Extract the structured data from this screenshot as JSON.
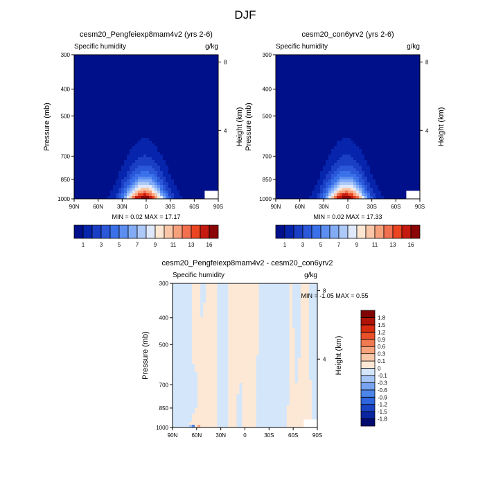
{
  "figure": {
    "title": "DJF"
  },
  "chart_data": [
    {
      "type": "heatmap",
      "id": "panel_a",
      "title": "cesm20_Pengfeiexp8mam4v2 (yrs 2-6)",
      "variable": "Specific humidity",
      "units": "g/kg",
      "ylabel": "Pressure (mb)",
      "ylabel_right": "Height (km)",
      "x_ticks": [
        "90N",
        "60N",
        "30N",
        "0",
        "30S",
        "60S",
        "90S"
      ],
      "x_range": [
        90,
        -90
      ],
      "y_ticks": [
        300,
        400,
        500,
        700,
        850,
        1000
      ],
      "y_range": [
        1000,
        300
      ],
      "height_ticks": [
        8,
        4
      ],
      "min_label": "MIN =",
      "min": "0.02",
      "max_label": "MAX =",
      "max": "17.17",
      "colorbar": {
        "levels": [
          1,
          2,
          3,
          4,
          5,
          6,
          7,
          8,
          9,
          10,
          11,
          12,
          13,
          14,
          16
        ],
        "tick_labels": [
          "1",
          "3",
          "5",
          "7",
          "9",
          "11",
          "13",
          "16"
        ],
        "colors": [
          "#00108a",
          "#0624ac",
          "#1a3fc4",
          "#2a58d8",
          "#3a70e8",
          "#5b8ef0",
          "#82acf5",
          "#adc9f8",
          "#dfe9fb",
          "#fde6d2",
          "#f9c6a8",
          "#f7a07c",
          "#f27050",
          "#ea4420",
          "#c41a10",
          "#8b0606"
        ]
      },
      "surface_missing_lat": -72
    },
    {
      "type": "heatmap",
      "id": "panel_b",
      "title": "cesm20_con6yrv2 (yrs 2-6)",
      "variable": "Specific humidity",
      "units": "g/kg",
      "ylabel": "Pressure (mb)",
      "ylabel_right": "Height (km)",
      "x_ticks": [
        "90N",
        "60N",
        "30N",
        "0",
        "30S",
        "60S",
        "90S"
      ],
      "x_range": [
        90,
        -90
      ],
      "y_ticks": [
        300,
        400,
        500,
        700,
        850,
        1000
      ],
      "y_range": [
        1000,
        300
      ],
      "height_ticks": [
        8,
        4
      ],
      "min_label": "MIN =",
      "min": "0.02",
      "max_label": "MAX =",
      "max": "17.33",
      "colorbar": {
        "levels": [
          1,
          2,
          3,
          4,
          5,
          6,
          7,
          8,
          9,
          10,
          11,
          12,
          13,
          14,
          16
        ],
        "tick_labels": [
          "1",
          "3",
          "5",
          "7",
          "9",
          "11",
          "13",
          "16"
        ],
        "colors": [
          "#00108a",
          "#0624ac",
          "#1a3fc4",
          "#2a58d8",
          "#3a70e8",
          "#5b8ef0",
          "#82acf5",
          "#adc9f8",
          "#dfe9fb",
          "#fde6d2",
          "#f9c6a8",
          "#f7a07c",
          "#f27050",
          "#ea4420",
          "#c41a10",
          "#8b0606"
        ]
      },
      "surface_missing_lat": -72
    },
    {
      "type": "heatmap",
      "id": "panel_diff",
      "title": "cesm20_Pengfeiexp8mam4v2 - cesm20_con6yrv2",
      "variable": "Specific humidity",
      "units": "g/kg",
      "ylabel": "Pressure (mb)",
      "ylabel_right": "Height (km)",
      "x_ticks": [
        "90N",
        "60N",
        "30N",
        "0",
        "30S",
        "60S",
        "90S"
      ],
      "x_range": [
        90,
        -90
      ],
      "y_ticks": [
        300,
        400,
        500,
        700,
        850,
        1000
      ],
      "y_range": [
        1000,
        300
      ],
      "height_ticks": [
        8,
        4
      ],
      "min_label": "MIN =",
      "min": "-1.05",
      "max_label": "MAX =",
      "max": "0.55",
      "colorbar": {
        "levels": [
          -1.8,
          -1.5,
          -1.2,
          -0.9,
          -0.6,
          -0.3,
          -0.1,
          0,
          0.1,
          0.3,
          0.6,
          0.9,
          1.2,
          1.5,
          1.8
        ],
        "tick_labels": [
          "-1.8",
          "-1.5",
          "-1.2",
          "-0.9",
          "-0.6",
          "-0.3",
          "-0.1",
          "0",
          "0.1",
          "0.3",
          "0.6",
          "0.9",
          "1.2",
          "1.5",
          "1.8"
        ],
        "colors": [
          "#020b6e",
          "#0a25a0",
          "#1a43c4",
          "#2e64dd",
          "#4c85ea",
          "#77a3f0",
          "#a7c5f6",
          "#d4e6fa",
          "#fde8d6",
          "#f9c8a9",
          "#f6a47d",
          "#f17a52",
          "#e9502a",
          "#d82c10",
          "#b01208",
          "#800404"
        ]
      },
      "surface_missing_lat": -72
    }
  ]
}
